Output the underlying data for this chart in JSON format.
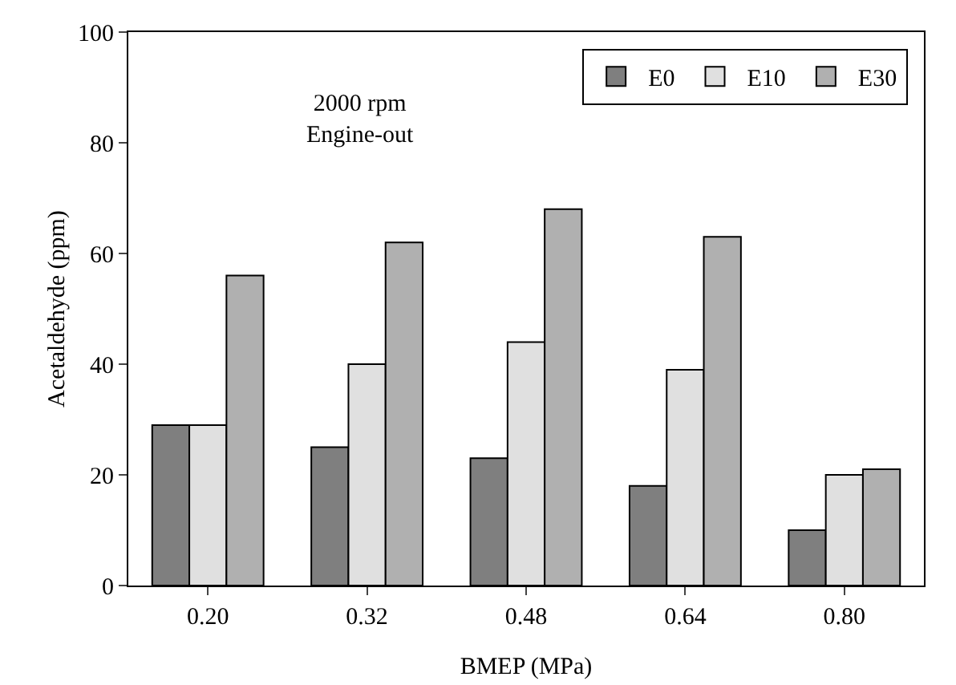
{
  "chart_data": {
    "type": "bar",
    "xlabel": "BMEP (MPa)",
    "ylabel": "Acetaldehyde (ppm)",
    "categories": [
      "0.20",
      "0.32",
      "0.48",
      "0.64",
      "0.80"
    ],
    "series": [
      {
        "name": "E0",
        "color": "#7f7f7f",
        "values": [
          29,
          25,
          23,
          18,
          10
        ]
      },
      {
        "name": "E10",
        "color": "#e0e0e0",
        "values": [
          29,
          40,
          44,
          39,
          20
        ]
      },
      {
        "name": "E30",
        "color": "#b0b0b0",
        "values": [
          56,
          62,
          68,
          63,
          21
        ]
      }
    ],
    "ylim": [
      0,
      100
    ],
    "yticks": [
      0,
      20,
      40,
      60,
      80,
      100
    ],
    "grid": false,
    "legend": "top right",
    "annotations": [
      "2000 rpm\nEngine-out"
    ]
  }
}
